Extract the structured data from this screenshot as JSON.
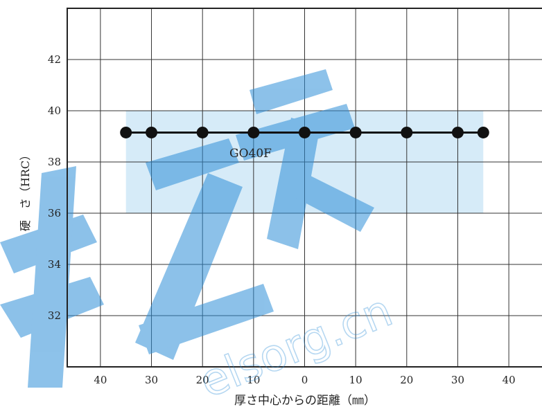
{
  "chart_data": {
    "type": "line",
    "title": "",
    "xlabel": "厚さ中心からの距離（㎜）",
    "ylabel": "硬　さ（HRC）",
    "x_tick_values": [
      -40,
      -30,
      -20,
      -10,
      0,
      10,
      20,
      30,
      40
    ],
    "x_tick_labels": [
      "40",
      "30",
      "20",
      "10",
      "0",
      "10",
      "20",
      "30",
      "40"
    ],
    "y_ticks": [
      32,
      34,
      36,
      38,
      40,
      42
    ],
    "xlim": [
      -46.5,
      46.5
    ],
    "ylim": [
      30,
      44
    ],
    "grid": true,
    "band": {
      "x": [
        -35,
        35
      ],
      "y": [
        36,
        40
      ],
      "color": "#d6ebf8"
    },
    "series": [
      {
        "name": "GO40F",
        "color": "#111111",
        "x": [
          -35,
          -30,
          -20,
          -10,
          0,
          10,
          20,
          30,
          35
        ],
        "y": [
          39.15,
          39.15,
          39.15,
          39.15,
          39.15,
          39.15,
          39.15,
          39.15,
          39.15
        ]
      }
    ],
    "watermark": {
      "text": "elsorg.cn",
      "color": "#2f8fd8"
    }
  }
}
